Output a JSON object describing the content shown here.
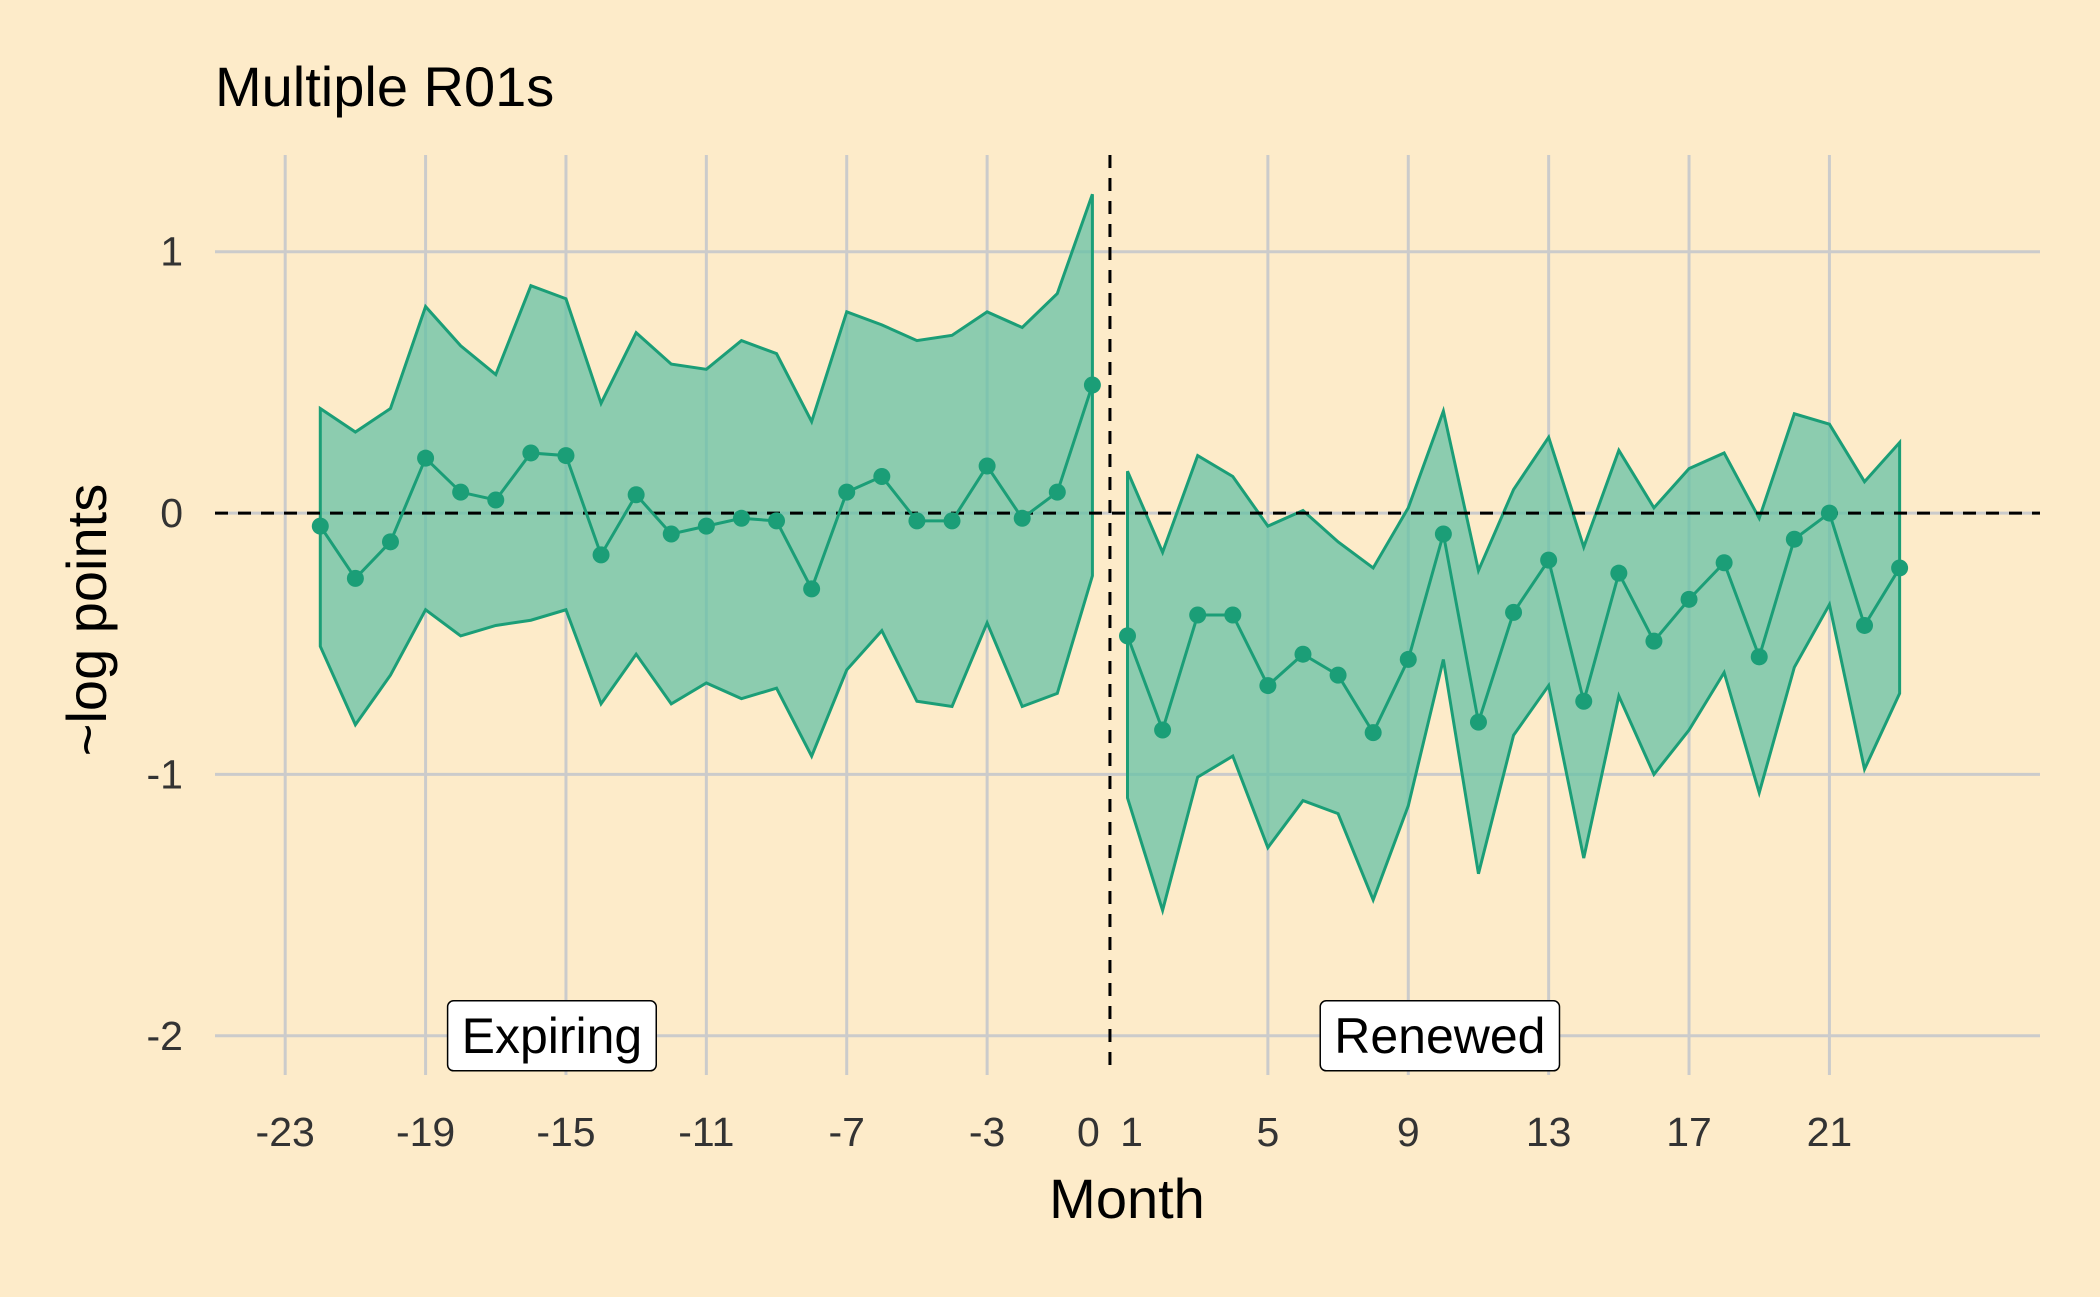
{
  "chart_data": {
    "type": "line",
    "title": "Multiple R01s",
    "xlabel": "Month",
    "ylabel": "~log points",
    "xlim": [
      -25,
      27
    ],
    "ylim": [
      -2.15,
      1.37
    ],
    "x_ticks": [
      -23,
      -19,
      -15,
      -11,
      -7,
      -3,
      0,
      1,
      5,
      9,
      13,
      17,
      21
    ],
    "y_ticks": [
      -2,
      -1,
      0,
      1
    ],
    "grid": true,
    "reference_lines": {
      "horizontal_y": 0,
      "vertical_x": 0.5
    },
    "colors": {
      "series": "#1B9E77",
      "ribbon": "#66C2A5",
      "background": "#FDEBC9",
      "grid": "#CBCBCB",
      "reference": "#000000"
    },
    "annotations": [
      {
        "text": "Expiring",
        "x": -15.4,
        "y": -2.0
      },
      {
        "text": "Renewed",
        "x": 9.9,
        "y": -2.0
      }
    ],
    "series": [
      {
        "segment": "pre",
        "x": [
          -22,
          -21,
          -20,
          -19,
          -18,
          -17,
          -16,
          -15,
          -14,
          -13,
          -12,
          -11,
          -10,
          -9,
          -8,
          -7,
          -6,
          -5,
          -4,
          -3,
          -2,
          -1,
          0
        ],
        "estimate": [
          -0.05,
          -0.25,
          -0.11,
          0.21,
          0.08,
          0.05,
          0.23,
          0.22,
          -0.16,
          0.07,
          -0.08,
          -0.05,
          -0.02,
          -0.03,
          -0.29,
          0.08,
          0.14,
          -0.03,
          -0.03,
          0.18,
          -0.02,
          0.08,
          0.49
        ],
        "upper": [
          0.4,
          0.31,
          0.4,
          0.79,
          0.64,
          0.53,
          0.87,
          0.82,
          0.42,
          0.69,
          0.57,
          0.55,
          0.66,
          0.61,
          0.35,
          0.77,
          0.72,
          0.66,
          0.68,
          0.77,
          0.71,
          0.84,
          1.22
        ],
        "lower": [
          -0.51,
          -0.81,
          -0.62,
          -0.37,
          -0.47,
          -0.43,
          -0.41,
          -0.37,
          -0.73,
          -0.54,
          -0.73,
          -0.65,
          -0.71,
          -0.67,
          -0.93,
          -0.6,
          -0.45,
          -0.72,
          -0.74,
          -0.42,
          -0.74,
          -0.69,
          -0.24
        ]
      },
      {
        "segment": "post",
        "x": [
          1,
          2,
          3,
          4,
          5,
          6,
          7,
          8,
          9,
          10,
          11,
          12,
          13,
          14,
          15,
          16,
          17,
          18,
          19,
          20,
          21,
          22,
          23
        ],
        "estimate": [
          -0.47,
          -0.83,
          -0.39,
          -0.39,
          -0.66,
          -0.54,
          -0.62,
          -0.84,
          -0.56,
          -0.08,
          -0.8,
          -0.38,
          -0.18,
          -0.72,
          -0.23,
          -0.49,
          -0.33,
          -0.19,
          -0.55,
          -0.1,
          0.0,
          -0.43,
          -0.21
        ],
        "upper": [
          0.16,
          -0.15,
          0.22,
          0.14,
          -0.05,
          0.01,
          -0.11,
          -0.21,
          0.02,
          0.39,
          -0.22,
          0.09,
          0.29,
          -0.13,
          0.24,
          0.02,
          0.17,
          0.23,
          -0.02,
          0.38,
          0.34,
          0.12,
          0.27
        ],
        "lower": [
          -1.09,
          -1.52,
          -1.01,
          -0.93,
          -1.28,
          -1.1,
          -1.15,
          -1.48,
          -1.12,
          -0.56,
          -1.38,
          -0.85,
          -0.66,
          -1.32,
          -0.7,
          -1.0,
          -0.83,
          -0.61,
          -1.07,
          -0.59,
          -0.35,
          -0.98,
          -0.69
        ]
      }
    ]
  }
}
